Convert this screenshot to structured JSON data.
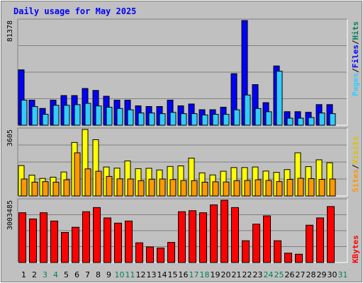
{
  "header": {
    "title": "Daily usage for May 2025"
  },
  "colors": {
    "background": "#c0c0c0",
    "title": "#0000ff",
    "hits_fill": "#00ccff",
    "files_fill": "#0000ff",
    "pages_fill": "#33ccff",
    "visits_fill": "#ffff00",
    "sites_fill": "#ff9900",
    "kbytes_fill": "#ff0000",
    "weekend_label": "#00805c",
    "weekday_label": "#000000"
  },
  "chart_data": [
    {
      "type": "bar",
      "name": "hits-files-pages",
      "ymax_label": "81378",
      "ylim": [
        0,
        81378
      ],
      "legend": {
        "pages": "Pages",
        "files": "Files",
        "hits": "Hits",
        "separator": "/"
      },
      "series": [
        {
          "name": "Hits",
          "values": [
            43000,
            19500,
            13000,
            19500,
            23000,
            23000,
            28500,
            27000,
            22500,
            19500,
            19500,
            15000,
            14500,
            14500,
            19500,
            15000,
            16500,
            12000,
            12000,
            14000,
            40000,
            81378,
            31500,
            17500,
            46000,
            10500,
            10500,
            10000,
            16000,
            16000
          ]
        },
        {
          "name": "Files",
          "values": [
            43000,
            19500,
            13000,
            19500,
            23000,
            23000,
            28500,
            27000,
            22500,
            19500,
            19500,
            15000,
            14500,
            14500,
            19500,
            15000,
            16500,
            12000,
            12000,
            14000,
            40000,
            81378,
            31500,
            17500,
            46000,
            10500,
            10500,
            10000,
            16000,
            16000
          ]
        },
        {
          "name": "Pages",
          "values": [
            19500,
            14500,
            8500,
            15500,
            15500,
            16000,
            17000,
            15000,
            14000,
            13000,
            12000,
            9500,
            9500,
            9000,
            10000,
            9000,
            9000,
            8000,
            8500,
            8500,
            12000,
            23500,
            13000,
            10500,
            42000,
            5500,
            5500,
            6000,
            9500,
            9000
          ]
        }
      ]
    },
    {
      "type": "bar",
      "name": "visits-sites",
      "ymax_label": "3605",
      "ylim": [
        0,
        3605
      ],
      "legend": {
        "sites": "Sites",
        "visits": "Visits",
        "separator": "/"
      },
      "series": [
        {
          "name": "Visits",
          "values": [
            1650,
            1130,
            950,
            1020,
            1300,
            2900,
            3605,
            3050,
            1570,
            1510,
            1900,
            1480,
            1500,
            1410,
            1600,
            1630,
            2050,
            1250,
            1140,
            1340,
            1540,
            1540,
            1570,
            1350,
            1280,
            1430,
            2340,
            1590,
            1960,
            1800
          ]
        },
        {
          "name": "Sites",
          "values": [
            920,
            750,
            780,
            750,
            880,
            2340,
            1470,
            1340,
            1060,
            930,
            920,
            830,
            910,
            920,
            890,
            840,
            830,
            750,
            770,
            760,
            830,
            840,
            880,
            840,
            780,
            900,
            960,
            940,
            900,
            920
          ]
        }
      ]
    },
    {
      "type": "bar",
      "name": "kbytes",
      "ymax_label": "3003485",
      "ylim": [
        0,
        3003485
      ],
      "legend": {
        "kbytes": "KBytes"
      },
      "series": [
        {
          "name": "KBytes",
          "values": [
            2400000,
            2100000,
            2400000,
            2000000,
            1450000,
            1700000,
            2450000,
            2650000,
            2150000,
            1900000,
            2000000,
            950000,
            750000,
            700000,
            970000,
            2450000,
            2500000,
            2400000,
            2780000,
            3003485,
            2650000,
            1050000,
            1850000,
            2250000,
            1050000,
            450000,
            400000,
            1800000,
            2150000,
            2700000
          ]
        }
      ]
    }
  ],
  "x_axis": {
    "days": [
      {
        "label": "1",
        "weekend": false
      },
      {
        "label": "2",
        "weekend": false
      },
      {
        "label": "3",
        "weekend": true
      },
      {
        "label": "4",
        "weekend": true
      },
      {
        "label": "5",
        "weekend": false
      },
      {
        "label": "6",
        "weekend": false
      },
      {
        "label": "7",
        "weekend": false
      },
      {
        "label": "8",
        "weekend": false
      },
      {
        "label": "9",
        "weekend": false
      },
      {
        "label": "10",
        "weekend": true
      },
      {
        "label": "11",
        "weekend": true
      },
      {
        "label": "12",
        "weekend": false
      },
      {
        "label": "13",
        "weekend": false
      },
      {
        "label": "14",
        "weekend": false
      },
      {
        "label": "15",
        "weekend": false
      },
      {
        "label": "16",
        "weekend": false
      },
      {
        "label": "17",
        "weekend": true
      },
      {
        "label": "18",
        "weekend": true
      },
      {
        "label": "19",
        "weekend": false
      },
      {
        "label": "20",
        "weekend": false
      },
      {
        "label": "21",
        "weekend": false
      },
      {
        "label": "22",
        "weekend": false
      },
      {
        "label": "23",
        "weekend": false
      },
      {
        "label": "24",
        "weekend": true
      },
      {
        "label": "25",
        "weekend": true
      },
      {
        "label": "26",
        "weekend": false
      },
      {
        "label": "27",
        "weekend": false
      },
      {
        "label": "28",
        "weekend": false
      },
      {
        "label": "29",
        "weekend": false
      },
      {
        "label": "30",
        "weekend": false
      },
      {
        "label": "31",
        "weekend": true
      }
    ]
  }
}
